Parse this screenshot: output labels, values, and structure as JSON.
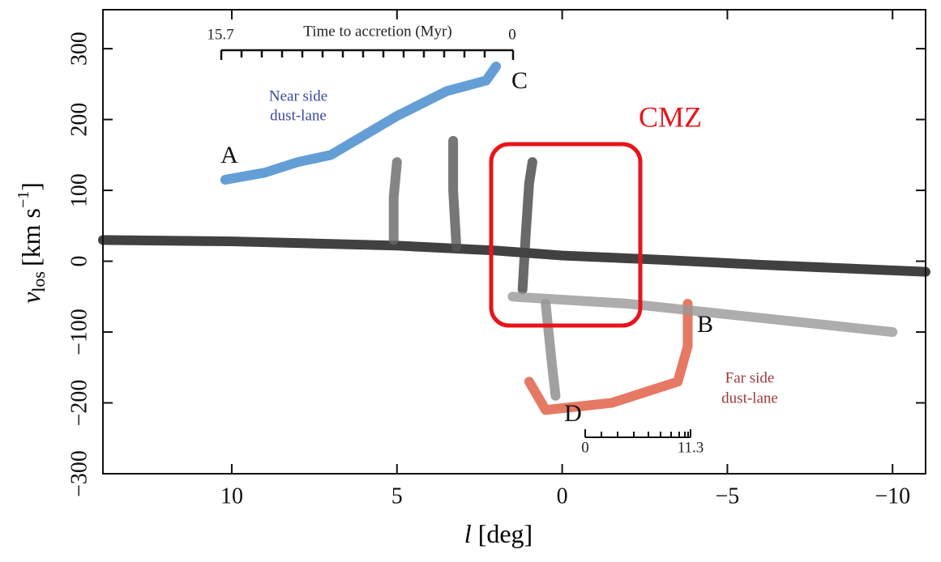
{
  "chart_data": {
    "type": "line",
    "x_label": {
      "symbol": "l",
      "unit": "[deg]"
    },
    "y_label": {
      "symbol": "v",
      "subscript": "los",
      "unit": "[km s",
      "exponent": "−1",
      "close": "]"
    },
    "xlim": [
      13.9,
      -11
    ],
    "ylim": [
      -300,
      355
    ],
    "xticks": [
      10,
      5,
      0,
      {
        "value": -5,
        "label": "−5"
      },
      {
        "value": -10,
        "label": "−10"
      }
    ],
    "yticks": [
      300,
      200,
      100,
      0,
      {
        "value": -100,
        "label": "−100"
      },
      {
        "value": -200,
        "label": "−200"
      },
      {
        "value": -300,
        "label": "−300"
      }
    ],
    "series": [
      {
        "color": "#111111",
        "x": [
          13.9,
          10,
          5,
          2,
          0,
          -3,
          -6,
          -11
        ],
        "values": [
          30,
          28,
          22,
          15,
          8,
          2,
          -5,
          -15
        ]
      },
      {
        "color": "#3d86cc",
        "x": [
          10.2,
          9,
          8,
          7,
          5,
          3.5,
          2.3,
          2.0
        ],
        "values": [
          115,
          125,
          140,
          150,
          205,
          240,
          255,
          275
        ]
      },
      {
        "color": "#e0583c",
        "x": [
          1.0,
          0.5,
          -0.5,
          -1.5,
          -2.5,
          -3.5,
          -3.8,
          -3.8
        ],
        "values": [
          -170,
          -210,
          -205,
          -200,
          -185,
          -170,
          -120,
          -60
        ]
      },
      {
        "color": "#444444",
        "x": [
          1.2,
          1.1,
          1.0,
          0.9
        ],
        "values": [
          -40,
          40,
          110,
          140
        ]
      },
      {
        "color": "#555555",
        "x": [
          3.2,
          3.3,
          3.3
        ],
        "values": [
          20,
          100,
          170
        ]
      },
      {
        "color": "#666666",
        "x": [
          5.1,
          5.1,
          5.0
        ],
        "values": [
          30,
          90,
          140
        ]
      },
      {
        "color": "#888888",
        "x": [
          0.5,
          0.3,
          0.2
        ],
        "values": [
          -60,
          -150,
          -190
        ]
      },
      {
        "color": "#999999",
        "x": [
          1.5,
          -2,
          -6,
          -10
        ],
        "values": [
          -50,
          -60,
          -80,
          -100
        ]
      }
    ],
    "annotations": {
      "top_scale_title": "Time to accretion (Myr)",
      "top_scale_start": "15.7",
      "top_scale_end": "0",
      "near_side": [
        "Near side",
        "dust-lane"
      ],
      "far_side": [
        "Far side",
        "dust-lane"
      ],
      "A": "A",
      "B": "B",
      "C": "C",
      "D": "D",
      "bottom_scale_start": "0",
      "bottom_scale_end": "11.3",
      "region": "CMZ"
    }
  }
}
